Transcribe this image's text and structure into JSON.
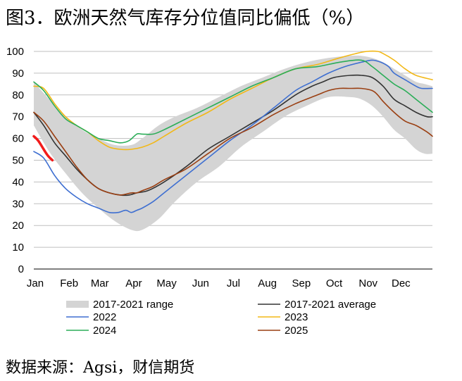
{
  "header": {
    "title": "图3．欧洲天然气库存分位值同比偏低（%）"
  },
  "footer": {
    "source": "数据来源：Agsi，财信期货"
  },
  "colors": {
    "range": "#d4d4d4",
    "average": "#333333",
    "s2022": "#3e6fd1",
    "s2023": "#f2b817",
    "s2024": "#2bad58",
    "s2025": "#9a3f12",
    "s2026": "#f21b1b"
  },
  "chart_data": {
    "type": "line",
    "title": "图3．欧洲天然气库存分位值同比偏低（%）",
    "xlabel": "",
    "ylabel": "",
    "ylim": [
      0,
      100
    ],
    "xlim": [
      1,
      365
    ],
    "yticks": [
      0,
      10,
      20,
      30,
      40,
      50,
      60,
      70,
      80,
      90,
      100
    ],
    "grid": true,
    "xticks": [
      {
        "label": "Jan",
        "day": 1
      },
      {
        "label": "Feb",
        "day": 32
      },
      {
        "label": "Mar",
        "day": 60
      },
      {
        "label": "Apr",
        "day": 91
      },
      {
        "label": "May",
        "day": 121
      },
      {
        "label": "Jun",
        "day": 152
      },
      {
        "label": "Jul",
        "day": 182
      },
      {
        "label": "Aug",
        "day": 213
      },
      {
        "label": "Sep",
        "day": 244
      },
      {
        "label": "Oct",
        "day": 274
      },
      {
        "label": "Nov",
        "day": 305
      },
      {
        "label": "Dec",
        "day": 335
      }
    ],
    "range": {
      "name": "2017-2021 range",
      "x": [
        1,
        15,
        30,
        45,
        60,
        75,
        90,
        100,
        115,
        130,
        150,
        170,
        190,
        210,
        230,
        250,
        270,
        290,
        300,
        310,
        320,
        330,
        340,
        350,
        358,
        365
      ],
      "low": [
        66,
        54,
        44,
        35,
        28,
        22,
        18,
        18,
        23,
        31,
        40,
        47,
        56,
        63,
        70,
        75,
        79,
        79,
        78,
        75,
        70,
        64,
        60,
        55,
        53,
        53
      ],
      "high": [
        86,
        78,
        70,
        64,
        60,
        57,
        57,
        60,
        66,
        70,
        74,
        79,
        84,
        88,
        92,
        95,
        97,
        98,
        98,
        97,
        95,
        92,
        89,
        86,
        85,
        84
      ]
    },
    "series": [
      {
        "name": "2017-2021 average",
        "key": "average",
        "x": [
          1,
          10,
          20,
          30,
          40,
          50,
          60,
          70,
          80,
          88,
          95,
          105,
          120,
          140,
          160,
          180,
          200,
          220,
          240,
          255,
          265,
          275,
          290,
          300,
          310,
          320,
          330,
          340,
          350,
          360,
          365
        ],
        "y": [
          72,
          66,
          58,
          52,
          46,
          41,
          37,
          35,
          34,
          34,
          35,
          36,
          40,
          47,
          55,
          61,
          67,
          73,
          80,
          84,
          86,
          88,
          89,
          89,
          88,
          84,
          78,
          75,
          72,
          70,
          70
        ]
      },
      {
        "name": "2022",
        "key": "s2022",
        "x": [
          1,
          10,
          20,
          30,
          40,
          50,
          60,
          70,
          78,
          85,
          90,
          95,
          100,
          110,
          120,
          140,
          160,
          180,
          200,
          220,
          240,
          255,
          270,
          285,
          300,
          310,
          318,
          325,
          330,
          340,
          350,
          355,
          365
        ],
        "y": [
          54,
          51,
          43,
          37,
          33,
          30,
          28,
          26,
          26,
          27,
          26,
          27,
          28,
          31,
          35,
          43,
          51,
          59,
          66,
          74,
          82,
          86,
          90,
          93,
          95,
          96,
          95,
          93,
          90,
          87,
          84,
          83,
          83
        ]
      },
      {
        "name": "2023",
        "key": "s2023",
        "x": [
          1,
          10,
          20,
          30,
          40,
          50,
          60,
          70,
          80,
          90,
          100,
          110,
          120,
          140,
          160,
          180,
          200,
          220,
          240,
          260,
          280,
          295,
          305,
          315,
          320,
          330,
          340,
          350,
          365
        ],
        "y": [
          84,
          83,
          76,
          70,
          66,
          63,
          59,
          56,
          55,
          55,
          56,
          58,
          61,
          67,
          72,
          78,
          83,
          88,
          92,
          94,
          97,
          99,
          100,
          100,
          99,
          96,
          92,
          89,
          87
        ]
      },
      {
        "name": "2024",
        "key": "s2024",
        "x": [
          1,
          10,
          20,
          30,
          40,
          50,
          60,
          70,
          80,
          88,
          95,
          100,
          110,
          120,
          140,
          160,
          180,
          200,
          220,
          240,
          260,
          280,
          300,
          310,
          320,
          330,
          340,
          350,
          360,
          365
        ],
        "y": [
          86,
          82,
          75,
          69,
          66,
          63,
          60,
          59,
          58,
          59,
          62,
          62,
          62,
          64,
          69,
          74,
          79,
          84,
          88,
          92,
          93,
          95,
          96,
          93,
          89,
          85,
          82,
          78,
          74,
          72
        ]
      },
      {
        "name": "2025",
        "key": "s2025",
        "x": [
          1,
          10,
          20,
          30,
          40,
          50,
          60,
          70,
          80,
          90,
          95,
          100,
          110,
          120,
          140,
          160,
          180,
          200,
          220,
          240,
          260,
          270,
          280,
          290,
          300,
          310,
          315,
          320,
          330,
          340,
          350,
          360,
          365
        ],
        "y": [
          72,
          68,
          61,
          54,
          47,
          41,
          37,
          35,
          34,
          35,
          35,
          36,
          38,
          41,
          46,
          53,
          60,
          65,
          71,
          76,
          80,
          82,
          83,
          83,
          83,
          82,
          80,
          77,
          72,
          68,
          66,
          63,
          61
        ]
      },
      {
        "name": "2026",
        "key": "s2026",
        "x": [
          1,
          5,
          10,
          14,
          18
        ],
        "y": [
          61,
          59,
          55,
          52,
          50
        ]
      }
    ],
    "legend": {
      "placement": "bottom",
      "entries": [
        {
          "label": "2017-2021 range",
          "key": "range",
          "kind": "band"
        },
        {
          "label": "2017-2021 average",
          "key": "average",
          "kind": "line"
        },
        {
          "label": "2022",
          "key": "s2022",
          "kind": "line"
        },
        {
          "label": "2023",
          "key": "s2023",
          "kind": "line"
        },
        {
          "label": "2024",
          "key": "s2024",
          "kind": "line"
        },
        {
          "label": "2025",
          "key": "s2025",
          "kind": "line"
        }
      ]
    }
  }
}
